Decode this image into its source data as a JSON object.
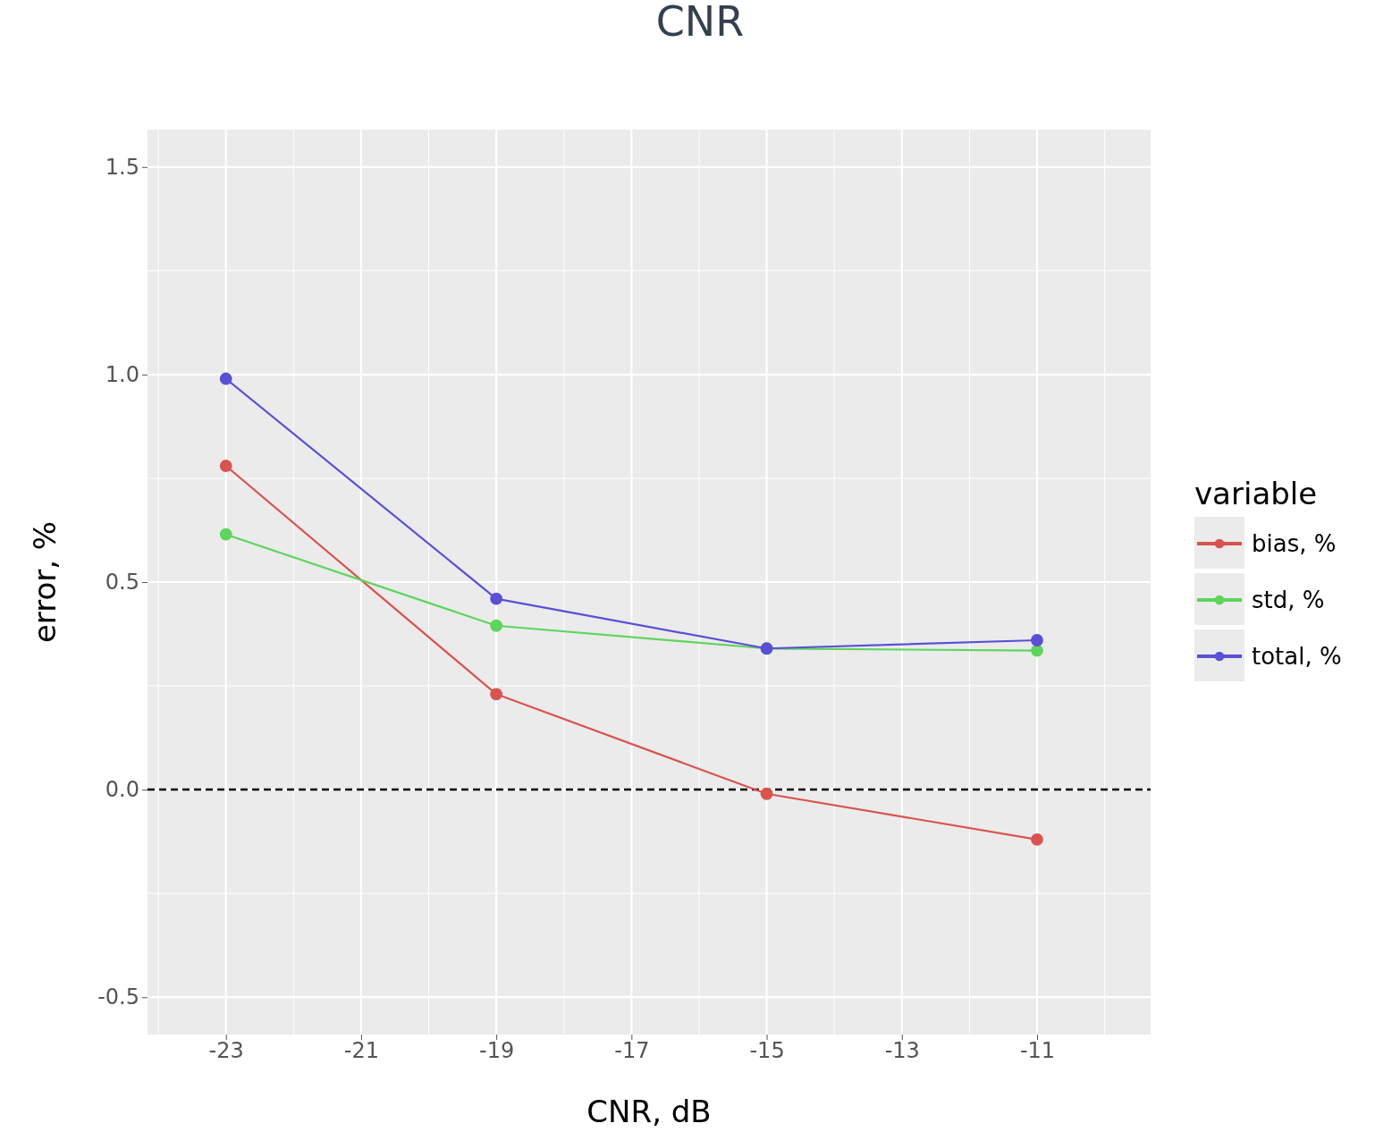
{
  "chart_data": {
    "type": "line",
    "title": "CNR",
    "xlabel": "CNR, dB",
    "ylabel": "error, %",
    "legend_title": "variable",
    "x": [
      -23,
      -19,
      -15,
      -11
    ],
    "series": [
      {
        "name": "bias, %",
        "color": "#d9534f",
        "values": [
          0.78,
          0.23,
          -0.01,
          -0.12
        ]
      },
      {
        "name": "std, %",
        "color": "#5cd65c",
        "values": [
          0.615,
          0.395,
          0.34,
          0.335
        ]
      },
      {
        "name": "total, %",
        "color": "#5a50d6",
        "values": [
          0.99,
          0.46,
          0.34,
          0.36
        ]
      }
    ],
    "xlim": [
      -24.16,
      -9.32
    ],
    "xticks": [
      -23,
      -21,
      -19,
      -17,
      -15,
      -13,
      -11
    ],
    "ylim": [
      -0.59,
      1.59
    ],
    "yticks": [
      {
        "value": -0.5,
        "label": "-0.5"
      },
      {
        "value": 0,
        "label": "0.0"
      },
      {
        "value": 0.5,
        "label": "0.5"
      },
      {
        "value": 1,
        "label": "1.0"
      },
      {
        "value": 1.5,
        "label": "1.5"
      }
    ],
    "grid": true,
    "legend": "right",
    "marker": "circle",
    "line_style": "solid",
    "ref_lines": [
      {
        "axis": "y",
        "value": 0,
        "color": "#000000",
        "line_style": "dashed"
      }
    ]
  }
}
